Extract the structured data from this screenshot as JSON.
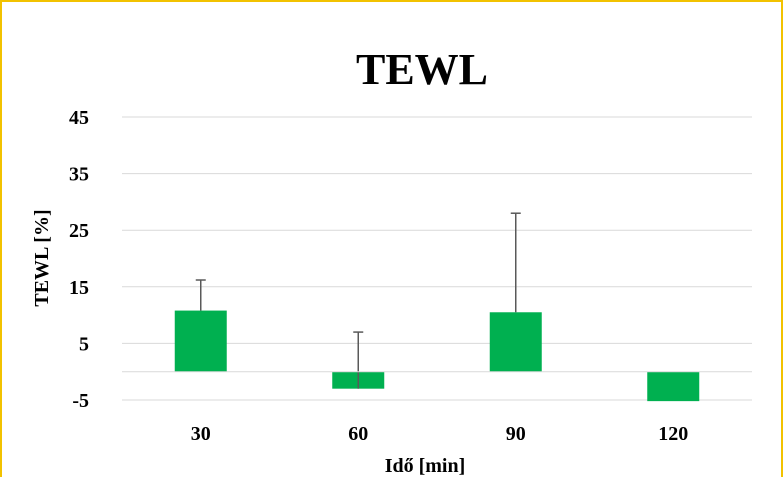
{
  "colors": {
    "frame_border": "#f2c200",
    "bar": "#00b050",
    "gridline": "#d9d9d9",
    "error_bar": "#595959"
  },
  "chart_data": {
    "type": "bar",
    "title": "TEWL",
    "xlabel": "Idő [min]",
    "ylabel": "TEWL [%]",
    "categories": [
      "30",
      "60",
      "90",
      "120"
    ],
    "series": [
      {
        "values": [
          10.8,
          -3.0,
          10.5,
          -5.2
        ],
        "error_plus": [
          5.4,
          10.0,
          17.5,
          0
        ]
      }
    ],
    "yticks": [
      -5,
      5,
      15,
      25,
      35,
      45
    ],
    "ytick_labels": [
      "-5",
      "5",
      "15",
      "25",
      "35",
      "45"
    ],
    "ylim": [
      -5,
      45
    ],
    "grid": true,
    "legend": "none"
  }
}
